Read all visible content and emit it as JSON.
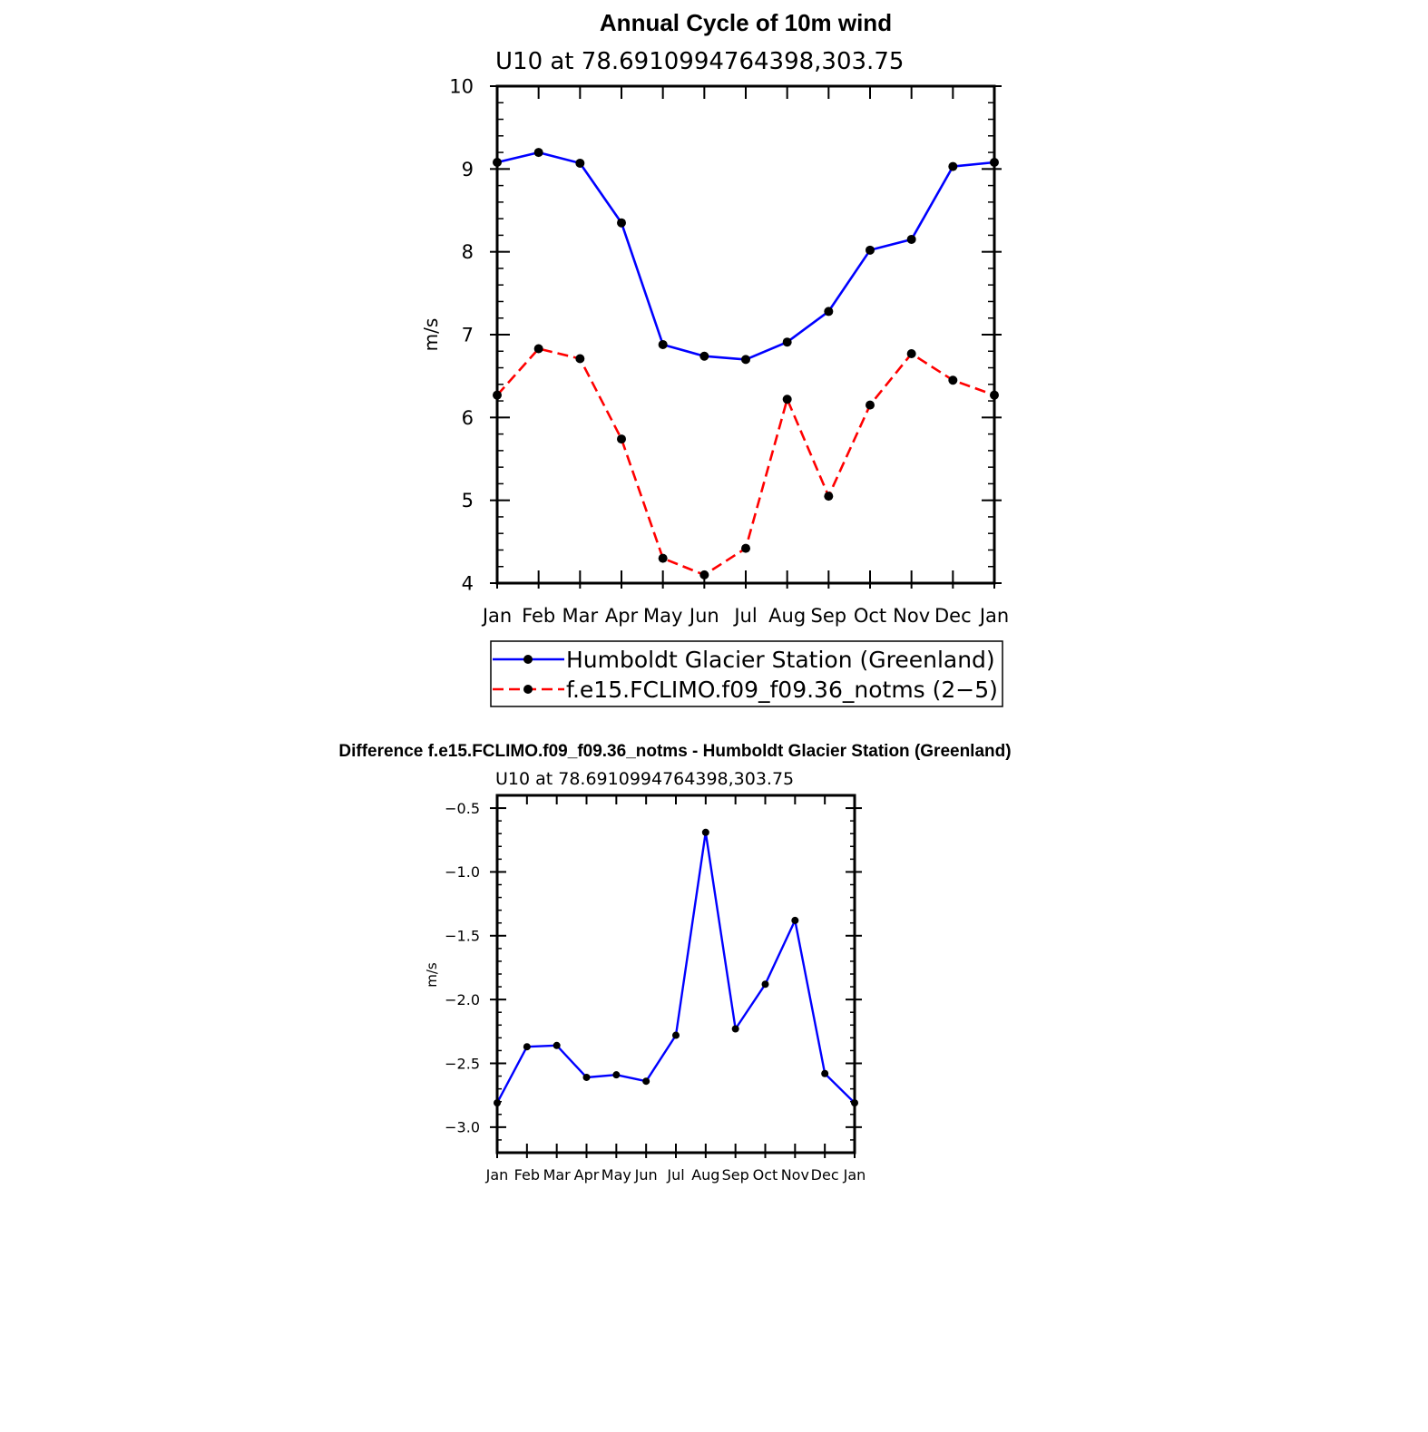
{
  "chart_data": [
    {
      "type": "line",
      "title": "Annual Cycle of 10m wind",
      "subtitle": "U10 at 78.6910994764398,303.75",
      "xlabel": "",
      "ylabel": "m/s",
      "categories": [
        "Jan",
        "Feb",
        "Mar",
        "Apr",
        "May",
        "Jun",
        "Jul",
        "Aug",
        "Sep",
        "Oct",
        "Nov",
        "Dec",
        "Jan"
      ],
      "ylim": [
        4,
        10
      ],
      "yticks": [
        "4",
        "5",
        "6",
        "7",
        "8",
        "9",
        "10"
      ],
      "grid": false,
      "legend": "bottom",
      "series": [
        {
          "name": "Humboldt Glacier Station (Greenland)",
          "color": "#0000ff",
          "dash": "solid",
          "values": [
            9.08,
            9.2,
            9.07,
            8.35,
            6.88,
            6.74,
            6.7,
            6.91,
            7.28,
            8.02,
            8.15,
            9.03,
            9.08
          ]
        },
        {
          "name": "f.e15.FCLIMO.f09_f09.36_notms (2−5)",
          "color": "#ff0000",
          "dash": "dashed",
          "values": [
            6.27,
            6.83,
            6.71,
            5.74,
            4.3,
            4.1,
            4.42,
            6.22,
            5.05,
            6.15,
            6.77,
            6.45,
            6.27
          ]
        }
      ]
    },
    {
      "type": "line",
      "title": "Difference f.e15.FCLIMO.f09_f09.36_notms - Humboldt Glacier Station (Greenland)",
      "subtitle": "U10 at 78.6910994764398,303.75",
      "xlabel": "",
      "ylabel": "m/s",
      "categories": [
        "Jan",
        "Feb",
        "Mar",
        "Apr",
        "May",
        "Jun",
        "Jul",
        "Aug",
        "Sep",
        "Oct",
        "Nov",
        "Dec",
        "Jan"
      ],
      "ylim": [
        -3.2,
        -0.4
      ],
      "yticks": [
        "−0.5",
        "−1.0",
        "−1.5",
        "−2.0",
        "−2.5",
        "−3.0"
      ],
      "ytick_values": [
        -0.5,
        -1.0,
        -1.5,
        -2.0,
        -2.5,
        -3.0
      ],
      "grid": false,
      "series": [
        {
          "color": "#0000ff",
          "dash": "solid",
          "values": [
            -2.81,
            -2.37,
            -2.36,
            -2.61,
            -2.59,
            -2.64,
            -2.28,
            -0.69,
            -2.23,
            -1.88,
            -1.38,
            -2.58,
            -2.81
          ]
        }
      ]
    }
  ]
}
